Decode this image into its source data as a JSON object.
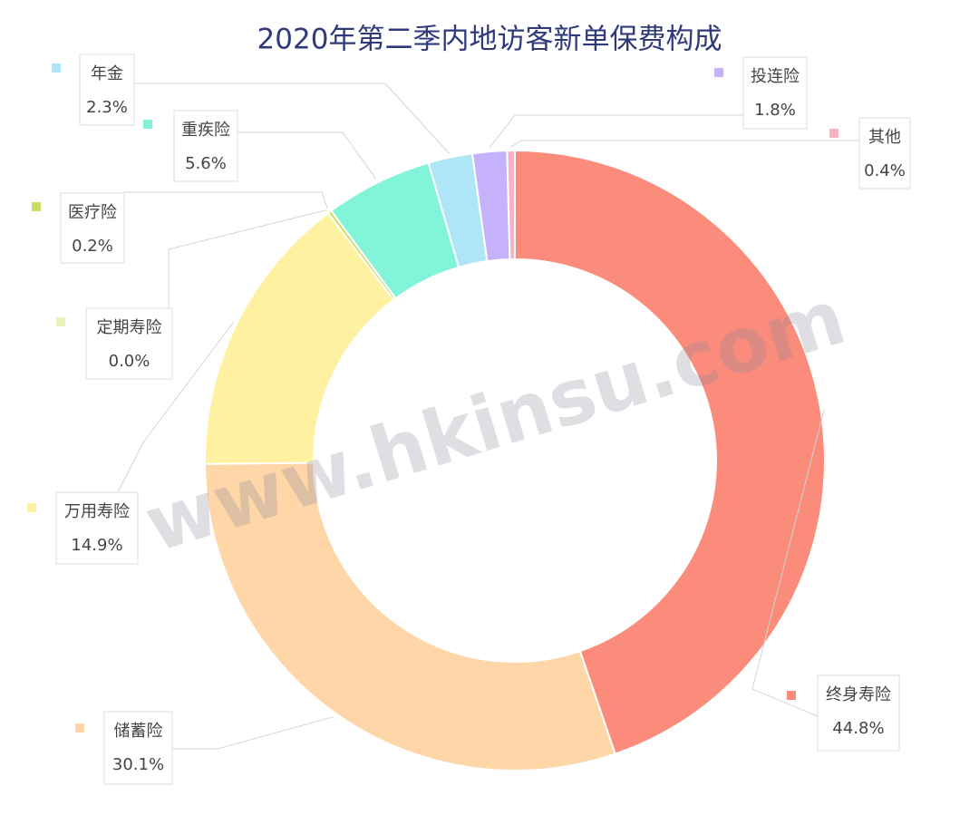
{
  "chart_data": {
    "type": "donut",
    "title": "2020年第二季内地访客新单保费构成",
    "watermark": "www.hkinsu.com",
    "categories": [
      "终身寿险",
      "储蓄险",
      "万用寿险",
      "定期寿险",
      "医疗险",
      "重疾险",
      "年金",
      "投连险",
      "其他"
    ],
    "values": [
      44.8,
      30.1,
      14.9,
      0.0,
      0.2,
      5.6,
      2.3,
      1.8,
      0.4
    ],
    "value_labels": [
      "44.8%",
      "30.1%",
      "14.9%",
      "0.0%",
      "0.2%",
      "5.6%",
      "2.3%",
      "1.8%",
      "0.4%"
    ],
    "colors": [
      "#fb8b7a",
      "#fed6a8",
      "#fef1a2",
      "#eaf2b8",
      "#c6df5e",
      "#82f4da",
      "#aee6f8",
      "#c5b2fa",
      "#f5b3c3"
    ]
  }
}
